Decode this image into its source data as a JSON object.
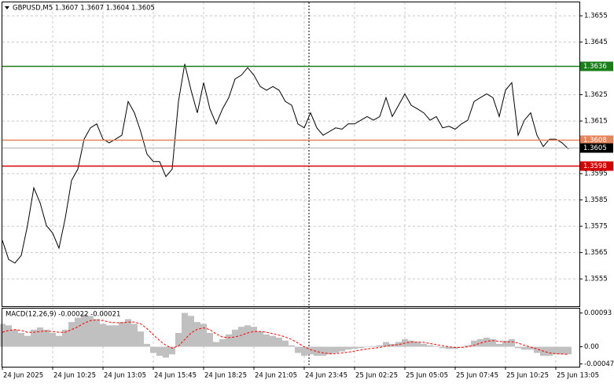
{
  "chart_data": [
    {
      "type": "line",
      "title": "GBPUSD,M5  1.3607 1.3607 1.3604 1.3605",
      "ylim": [
        1.35446,
        1.36601
      ],
      "yticks": [
        1.3555,
        1.3565,
        1.3575,
        1.3585,
        1.3595,
        1.3615,
        1.3625,
        1.3645,
        1.3655
      ],
      "grid": true,
      "series": [
        {
          "color": "#000000",
          "values": [
            1.35696,
            1.35624,
            1.3561,
            1.35639,
            1.35753,
            1.35896,
            1.35839,
            1.35753,
            1.35724,
            1.35667,
            1.35781,
            1.35924,
            1.35967,
            1.36081,
            1.36124,
            1.36139,
            1.36081,
            1.36067,
            1.36081,
            1.36096,
            1.36224,
            1.36181,
            1.3611,
            1.36024,
            1.35996,
            1.35996,
            1.35939,
            1.35967,
            1.36224,
            1.36367,
            1.36267,
            1.36181,
            1.36296,
            1.36196,
            1.36139,
            1.36196,
            1.36239,
            1.3631,
            1.36324,
            1.36353,
            1.36324,
            1.36281,
            1.36267,
            1.36281,
            1.36267,
            1.36224,
            1.3621,
            1.36139,
            1.36124,
            1.36181,
            1.36124,
            1.36096,
            1.3611,
            1.36124,
            1.36119,
            1.36139,
            1.36139,
            1.36153,
            1.36167,
            1.36153,
            1.36167,
            1.36239,
            1.36167,
            1.3621,
            1.36253,
            1.3621,
            1.36196,
            1.36181,
            1.36153,
            1.36167,
            1.36124,
            1.3613,
            1.36119,
            1.36139,
            1.36153,
            1.36224,
            1.36239,
            1.36253,
            1.36239,
            1.36167,
            1.36267,
            1.36296,
            1.36096,
            1.36153,
            1.36181,
            1.36096,
            1.36053,
            1.36081,
            1.36081,
            1.36067,
            1.36044
          ]
        }
      ],
      "levels": [
        {
          "value": 1.3636,
          "color": "#1a7f1a"
        },
        {
          "value": 1.3608,
          "color": "#e8845a"
        },
        {
          "value": 1.3598,
          "color": "#d40000"
        },
        {
          "value": 1.3605,
          "color": "#b0b0b0",
          "label_color": "#000000"
        }
      ]
    },
    {
      "type": "macd",
      "title": "MACD(12,26,9) -0.00022 -0.00021",
      "ylim": [
        -0.00055,
        0.00105
      ],
      "yticks": [
        -0.00047,
        {
          "value": 0,
          "label": "0.00"
        },
        0.00093
      ],
      "xticks": [
        "24 Jun 2025",
        "24 Jun 10:25",
        "24 Jun 13:05",
        "24 Jun 15:45",
        "24 Jun 18:25",
        "24 Jun 21:05",
        "24 Jun 23:45",
        "25 Jun 02:25",
        "25 Jun 05:05",
        "25 Jun 07:45",
        "25 Jun 10:25",
        "25 Jun 13:05"
      ],
      "series": [
        {
          "color": "#c0c0c0",
          "values": [
            0.00063,
            0.00059,
            0.00047,
            0.00038,
            0.0003,
            0.00047,
            0.00053,
            0.00047,
            0.00038,
            0.0003,
            0.00047,
            0.00068,
            0.0008,
            0.00089,
            0.00085,
            0.00076,
            0.00063,
            0.00059,
            0.00059,
            0.00068,
            0.00076,
            0.00063,
            0.00042,
            8e-05,
            -0.00017,
            -0.00025,
            -0.0003,
            -0.00021,
            0.00038,
            0.00093,
            0.00085,
            0.00068,
            0.00063,
            0.00038,
            0.00013,
            0.00021,
            0.00034,
            0.00047,
            0.00055,
            0.00059,
            0.00055,
            0.00042,
            0.00034,
            0.0003,
            0.00025,
            0.00017,
            4e-05,
            -0.00017,
            -0.00025,
            -0.00021,
            -0.00025,
            -0.00025,
            -0.00021,
            -0.00017,
            -0.00013,
            -8e-05,
            -6e-05,
            -4e-05,
            0,
            2e-05,
            4e-05,
            0.00013,
            8e-05,
            0.00013,
            0.00021,
            0.00017,
            0.00013,
            8e-05,
            4e-05,
            2e-05,
            -4e-05,
            -6e-05,
            -6e-05,
            -2e-05,
            4e-05,
            0.00017,
            0.00021,
            0.00025,
            0.00021,
            8e-05,
            0.00017,
            0.00021,
            -4e-05,
            -8e-05,
            -8e-05,
            -0.00017,
            -0.00025,
            -0.00025,
            -0.00021,
            -0.00021,
            -0.00021
          ]
        },
        {
          "color": "#ff0000",
          "values": [
            0.0004,
            0.00045,
            0.00047,
            0.00045,
            0.0004,
            0.0004,
            0.00042,
            0.00043,
            0.00042,
            0.0004,
            0.0004,
            0.00047,
            0.00055,
            0.00065,
            0.00072,
            0.00074,
            0.00072,
            0.00068,
            0.00066,
            0.00066,
            0.00068,
            0.00068,
            0.00063,
            0.0005,
            0.00033,
            0.00017,
            4e-05,
            -4e-05,
            2e-05,
            0.0002,
            0.00038,
            0.00048,
            0.00052,
            0.00047,
            0.00035,
            0.00027,
            0.00025,
            0.00027,
            0.00032,
            0.00038,
            0.00042,
            0.00042,
            0.0004,
            0.00036,
            0.00032,
            0.00027,
            0.0002,
            0.0001,
            0,
            -8e-05,
            -0.00013,
            -0.00017,
            -0.00019,
            -0.00019,
            -0.00017,
            -0.00015,
            -0.00012,
            -9e-05,
            -6e-05,
            -4e-05,
            -2e-05,
            2e-05,
            4e-05,
            6e-05,
            0.0001,
            0.00013,
            0.00013,
            0.00012,
            9e-05,
            6e-05,
            3e-05,
            0,
            -2e-05,
            -2e-05,
            0,
            4e-05,
            0.0001,
            0.00015,
            0.00017,
            0.00015,
            0.00013,
            0.00014,
            0.0001,
            4e-05,
            -1e-05,
            -6e-05,
            -0.00012,
            -0.00017,
            -0.00019,
            -0.0002,
            -0.00021
          ]
        }
      ]
    }
  ]
}
